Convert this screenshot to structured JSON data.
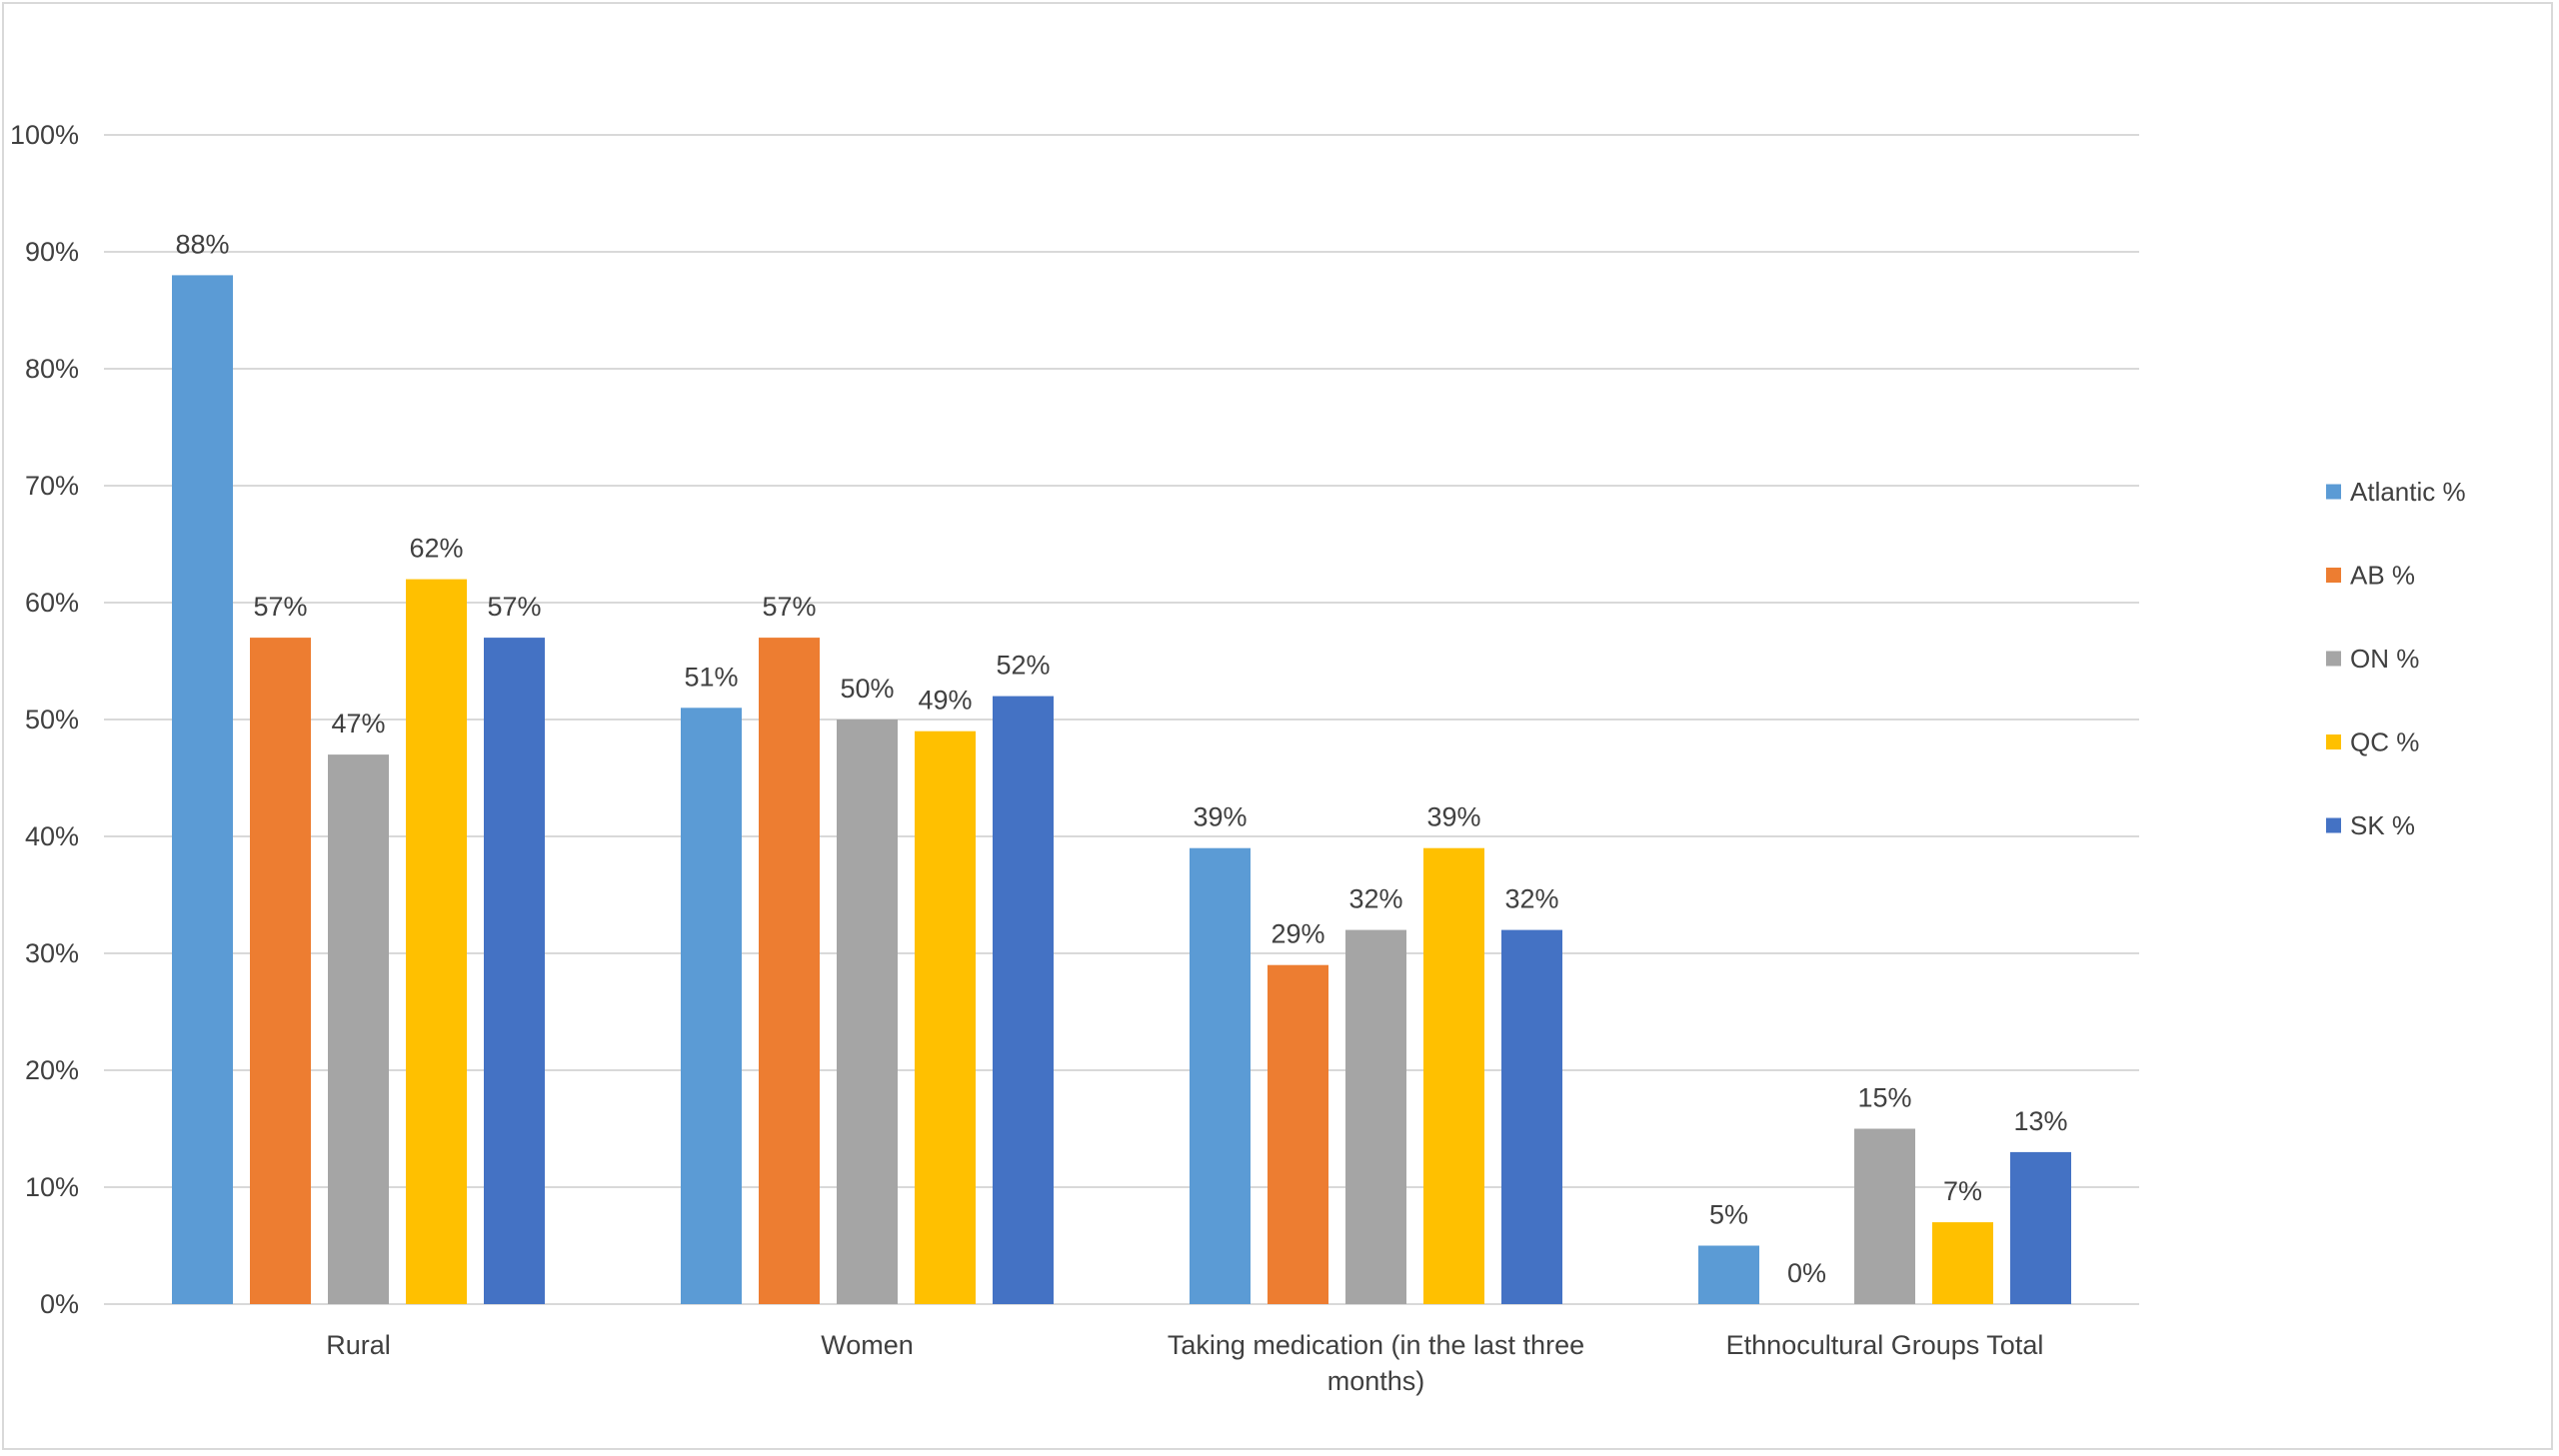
{
  "chart_data": {
    "type": "bar",
    "title": "",
    "xlabel": "",
    "ylabel": "",
    "ylim": [
      0,
      100
    ],
    "y_ticks": [
      "0%",
      "10%",
      "20%",
      "30%",
      "40%",
      "50%",
      "60%",
      "70%",
      "80%",
      "90%",
      "100%"
    ],
    "grid": true,
    "legend_position": "right",
    "categories": [
      [
        "Rural"
      ],
      [
        "Women"
      ],
      [
        "Taking medication (in the last three",
        "months)"
      ],
      [
        "Ethnocultural Groups Total"
      ]
    ],
    "series": [
      {
        "name": "Atlantic %",
        "color": "#5b9bd5",
        "values": [
          88,
          51,
          39,
          5
        ],
        "labels": [
          "88%",
          "51%",
          "39%",
          "5%"
        ]
      },
      {
        "name": "AB %",
        "color": "#ed7d31",
        "values": [
          57,
          57,
          29,
          0
        ],
        "labels": [
          "57%",
          "57%",
          "29%",
          "0%"
        ]
      },
      {
        "name": "ON %",
        "color": "#a5a5a5",
        "values": [
          47,
          50,
          32,
          15
        ],
        "labels": [
          "47%",
          "50%",
          "32%",
          "15%"
        ]
      },
      {
        "name": "QC %",
        "color": "#ffc000",
        "values": [
          62,
          49,
          39,
          7
        ],
        "labels": [
          "62%",
          "49%",
          "39%",
          "7%"
        ]
      },
      {
        "name": "SK %",
        "color": "#4472c4",
        "values": [
          57,
          52,
          32,
          13
        ],
        "labels": [
          "57%",
          "52%",
          "32%",
          "13%"
        ]
      }
    ]
  }
}
